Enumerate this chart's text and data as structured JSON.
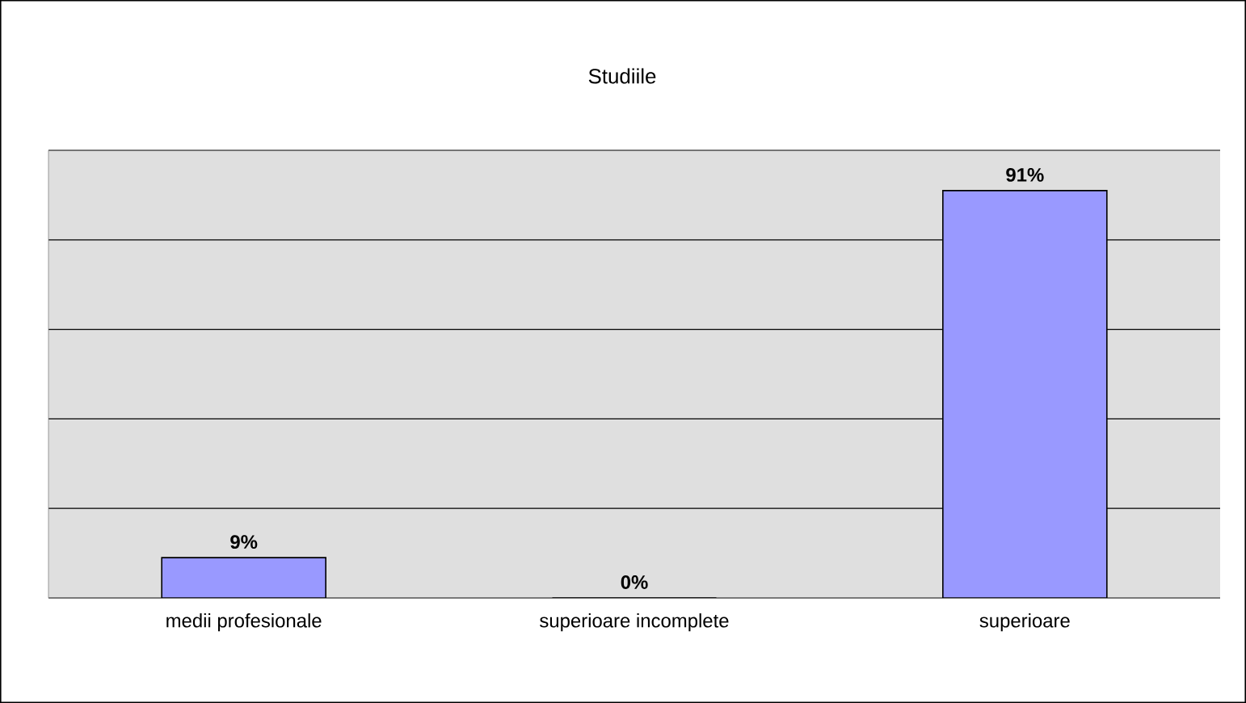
{
  "chart_data": {
    "type": "bar",
    "title": "Studiile",
    "categories": [
      "medii profesionale",
      "superioare incomplete",
      "superioare"
    ],
    "values": [
      9,
      0,
      91
    ],
    "color": "#9999ff",
    "value_labels": [
      "9%",
      "0%",
      "91%"
    ],
    "ylim": [
      0,
      100
    ],
    "yticks": [
      {
        "value": 0,
        "label": null
      },
      {
        "value": 20,
        "label": null
      },
      {
        "value": 40,
        "label": null
      },
      {
        "value": 60,
        "label": null
      },
      {
        "value": 80,
        "label": null
      },
      {
        "value": 100,
        "label": null
      }
    ],
    "tick_labels": "x",
    "grid": "y"
  }
}
